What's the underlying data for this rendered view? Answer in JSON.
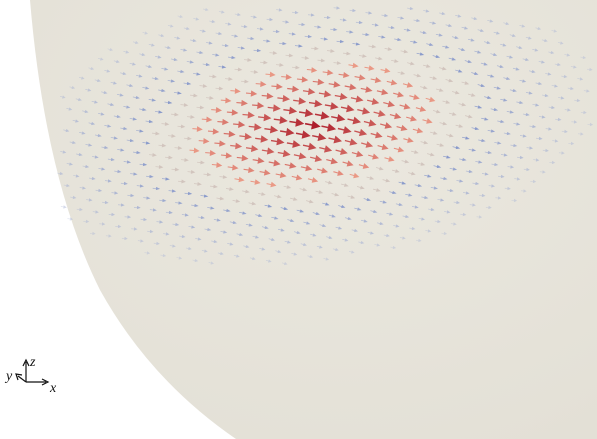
{
  "axes": {
    "x": "x",
    "y": "y",
    "z": "z"
  }
}
